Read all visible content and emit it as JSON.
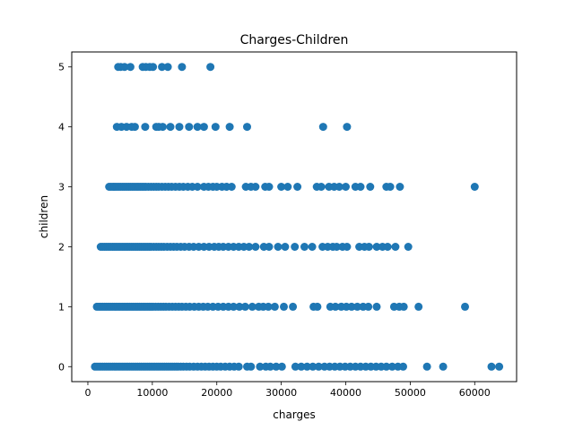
{
  "chart_data": {
    "type": "scatter",
    "title": "Charges-Children",
    "xlabel": "charges",
    "ylabel": "children",
    "xlim": [
      -2500,
      66500
    ],
    "ylim": [
      -0.25,
      5.25
    ],
    "x_ticks": [
      0,
      10000,
      20000,
      30000,
      40000,
      50000,
      60000
    ],
    "y_ticks": [
      0,
      1,
      2,
      3,
      4,
      5
    ],
    "marker_color": "#1f77b4",
    "grid": false,
    "series": [
      {
        "points": [
          [
            4700,
            5
          ],
          [
            5100,
            5
          ],
          [
            5700,
            5
          ],
          [
            6600,
            5
          ],
          [
            8500,
            5
          ],
          [
            9000,
            5
          ],
          [
            9600,
            5
          ],
          [
            10100,
            5
          ],
          [
            11500,
            5
          ],
          [
            12400,
            5
          ],
          [
            14600,
            5
          ],
          [
            19000,
            5
          ],
          [
            4500,
            4
          ],
          [
            5200,
            4
          ],
          [
            6000,
            4
          ],
          [
            6800,
            4
          ],
          [
            7300,
            4
          ],
          [
            8900,
            4
          ],
          [
            10600,
            4
          ],
          [
            11000,
            4
          ],
          [
            11600,
            4
          ],
          [
            12800,
            4
          ],
          [
            14200,
            4
          ],
          [
            15700,
            4
          ],
          [
            17000,
            4
          ],
          [
            18000,
            4
          ],
          [
            19800,
            4
          ],
          [
            22000,
            4
          ],
          [
            24700,
            4
          ],
          [
            36500,
            4
          ],
          [
            40200,
            4
          ],
          [
            3300,
            3
          ],
          [
            3600,
            3
          ],
          [
            3900,
            3
          ],
          [
            4200,
            3
          ],
          [
            4500,
            3
          ],
          [
            4800,
            3
          ],
          [
            5100,
            3
          ],
          [
            5400,
            3
          ],
          [
            5700,
            3
          ],
          [
            6000,
            3
          ],
          [
            6300,
            3
          ],
          [
            6600,
            3
          ],
          [
            6900,
            3
          ],
          [
            7200,
            3
          ],
          [
            7500,
            3
          ],
          [
            7800,
            3
          ],
          [
            8100,
            3
          ],
          [
            8400,
            3
          ],
          [
            8700,
            3
          ],
          [
            9000,
            3
          ],
          [
            9400,
            3
          ],
          [
            9800,
            3
          ],
          [
            10200,
            3
          ],
          [
            10600,
            3
          ],
          [
            11000,
            3
          ],
          [
            11500,
            3
          ],
          [
            12000,
            3
          ],
          [
            12500,
            3
          ],
          [
            13000,
            3
          ],
          [
            13600,
            3
          ],
          [
            14200,
            3
          ],
          [
            14800,
            3
          ],
          [
            15500,
            3
          ],
          [
            16200,
            3
          ],
          [
            17000,
            3
          ],
          [
            18000,
            3
          ],
          [
            18700,
            3
          ],
          [
            19400,
            3
          ],
          [
            20000,
            3
          ],
          [
            20800,
            3
          ],
          [
            21500,
            3
          ],
          [
            22300,
            3
          ],
          [
            24500,
            3
          ],
          [
            25300,
            3
          ],
          [
            26000,
            3
          ],
          [
            27500,
            3
          ],
          [
            28100,
            3
          ],
          [
            30000,
            3
          ],
          [
            31000,
            3
          ],
          [
            32500,
            3
          ],
          [
            35500,
            3
          ],
          [
            36200,
            3
          ],
          [
            37400,
            3
          ],
          [
            38200,
            3
          ],
          [
            39000,
            3
          ],
          [
            40000,
            3
          ],
          [
            41500,
            3
          ],
          [
            42300,
            3
          ],
          [
            43800,
            3
          ],
          [
            46300,
            3
          ],
          [
            46900,
            3
          ],
          [
            48400,
            3
          ],
          [
            60000,
            3
          ],
          [
            2000,
            2
          ],
          [
            2300,
            2
          ],
          [
            2600,
            2
          ],
          [
            2900,
            2
          ],
          [
            3200,
            2
          ],
          [
            3500,
            2
          ],
          [
            3800,
            2
          ],
          [
            4100,
            2
          ],
          [
            4400,
            2
          ],
          [
            4700,
            2
          ],
          [
            5000,
            2
          ],
          [
            5300,
            2
          ],
          [
            5600,
            2
          ],
          [
            5900,
            2
          ],
          [
            6200,
            2
          ],
          [
            6500,
            2
          ],
          [
            6800,
            2
          ],
          [
            7100,
            2
          ],
          [
            7400,
            2
          ],
          [
            7700,
            2
          ],
          [
            8000,
            2
          ],
          [
            8300,
            2
          ],
          [
            8600,
            2
          ],
          [
            8900,
            2
          ],
          [
            9200,
            2
          ],
          [
            9500,
            2
          ],
          [
            9800,
            2
          ],
          [
            10200,
            2
          ],
          [
            10600,
            2
          ],
          [
            11000,
            2
          ],
          [
            11400,
            2
          ],
          [
            11800,
            2
          ],
          [
            12300,
            2
          ],
          [
            12800,
            2
          ],
          [
            13300,
            2
          ],
          [
            13800,
            2
          ],
          [
            14400,
            2
          ],
          [
            15000,
            2
          ],
          [
            15700,
            2
          ],
          [
            16400,
            2
          ],
          [
            17200,
            2
          ],
          [
            18000,
            2
          ],
          [
            18800,
            2
          ],
          [
            19600,
            2
          ],
          [
            20300,
            2
          ],
          [
            21000,
            2
          ],
          [
            21800,
            2
          ],
          [
            22600,
            2
          ],
          [
            23400,
            2
          ],
          [
            24200,
            2
          ],
          [
            25000,
            2
          ],
          [
            26000,
            2
          ],
          [
            27300,
            2
          ],
          [
            28100,
            2
          ],
          [
            29500,
            2
          ],
          [
            30600,
            2
          ],
          [
            32100,
            2
          ],
          [
            33600,
            2
          ],
          [
            34800,
            2
          ],
          [
            36400,
            2
          ],
          [
            37200,
            2
          ],
          [
            38000,
            2
          ],
          [
            38600,
            2
          ],
          [
            39500,
            2
          ],
          [
            40200,
            2
          ],
          [
            42100,
            2
          ],
          [
            42900,
            2
          ],
          [
            43600,
            2
          ],
          [
            44800,
            2
          ],
          [
            45700,
            2
          ],
          [
            46500,
            2
          ],
          [
            47700,
            2
          ],
          [
            49700,
            2
          ],
          [
            1400,
            1
          ],
          [
            1700,
            1
          ],
          [
            2000,
            1
          ],
          [
            2300,
            1
          ],
          [
            2600,
            1
          ],
          [
            2900,
            1
          ],
          [
            3200,
            1
          ],
          [
            3500,
            1
          ],
          [
            3800,
            1
          ],
          [
            4100,
            1
          ],
          [
            4400,
            1
          ],
          [
            4700,
            1
          ],
          [
            5000,
            1
          ],
          [
            5300,
            1
          ],
          [
            5600,
            1
          ],
          [
            5900,
            1
          ],
          [
            6200,
            1
          ],
          [
            6500,
            1
          ],
          [
            6800,
            1
          ],
          [
            7100,
            1
          ],
          [
            7400,
            1
          ],
          [
            7700,
            1
          ],
          [
            8000,
            1
          ],
          [
            8300,
            1
          ],
          [
            8600,
            1
          ],
          [
            8900,
            1
          ],
          [
            9200,
            1
          ],
          [
            9500,
            1
          ],
          [
            9800,
            1
          ],
          [
            10100,
            1
          ],
          [
            10500,
            1
          ],
          [
            10900,
            1
          ],
          [
            11300,
            1
          ],
          [
            11700,
            1
          ],
          [
            12100,
            1
          ],
          [
            12600,
            1
          ],
          [
            13100,
            1
          ],
          [
            13600,
            1
          ],
          [
            14100,
            1
          ],
          [
            14600,
            1
          ],
          [
            15200,
            1
          ],
          [
            15800,
            1
          ],
          [
            16500,
            1
          ],
          [
            17200,
            1
          ],
          [
            17900,
            1
          ],
          [
            18600,
            1
          ],
          [
            19400,
            1
          ],
          [
            20200,
            1
          ],
          [
            21000,
            1
          ],
          [
            21800,
            1
          ],
          [
            22600,
            1
          ],
          [
            23500,
            1
          ],
          [
            24400,
            1
          ],
          [
            25500,
            1
          ],
          [
            26500,
            1
          ],
          [
            27200,
            1
          ],
          [
            28000,
            1
          ],
          [
            29000,
            1
          ],
          [
            30400,
            1
          ],
          [
            31800,
            1
          ],
          [
            35000,
            1
          ],
          [
            35600,
            1
          ],
          [
            37600,
            1
          ],
          [
            38400,
            1
          ],
          [
            39300,
            1
          ],
          [
            40100,
            1
          ],
          [
            40900,
            1
          ],
          [
            41800,
            1
          ],
          [
            42700,
            1
          ],
          [
            43500,
            1
          ],
          [
            44800,
            1
          ],
          [
            47500,
            1
          ],
          [
            48300,
            1
          ],
          [
            49000,
            1
          ],
          [
            51300,
            1
          ],
          [
            58500,
            1
          ],
          [
            1100,
            0
          ],
          [
            1400,
            0
          ],
          [
            1700,
            0
          ],
          [
            2000,
            0
          ],
          [
            2300,
            0
          ],
          [
            2600,
            0
          ],
          [
            2900,
            0
          ],
          [
            3200,
            0
          ],
          [
            3500,
            0
          ],
          [
            3800,
            0
          ],
          [
            4100,
            0
          ],
          [
            4400,
            0
          ],
          [
            4700,
            0
          ],
          [
            5000,
            0
          ],
          [
            5300,
            0
          ],
          [
            5600,
            0
          ],
          [
            5900,
            0
          ],
          [
            6200,
            0
          ],
          [
            6500,
            0
          ],
          [
            6800,
            0
          ],
          [
            7100,
            0
          ],
          [
            7400,
            0
          ],
          [
            7700,
            0
          ],
          [
            8000,
            0
          ],
          [
            8300,
            0
          ],
          [
            8600,
            0
          ],
          [
            8900,
            0
          ],
          [
            9200,
            0
          ],
          [
            9500,
            0
          ],
          [
            9800,
            0
          ],
          [
            10100,
            0
          ],
          [
            10400,
            0
          ],
          [
            10700,
            0
          ],
          [
            11000,
            0
          ],
          [
            11300,
            0
          ],
          [
            11600,
            0
          ],
          [
            11900,
            0
          ],
          [
            12200,
            0
          ],
          [
            12500,
            0
          ],
          [
            12800,
            0
          ],
          [
            13100,
            0
          ],
          [
            13400,
            0
          ],
          [
            13700,
            0
          ],
          [
            14000,
            0
          ],
          [
            14400,
            0
          ],
          [
            14800,
            0
          ],
          [
            15300,
            0
          ],
          [
            15800,
            0
          ],
          [
            16400,
            0
          ],
          [
            17000,
            0
          ],
          [
            17600,
            0
          ],
          [
            18200,
            0
          ],
          [
            18800,
            0
          ],
          [
            19400,
            0
          ],
          [
            20000,
            0
          ],
          [
            20600,
            0
          ],
          [
            21300,
            0
          ],
          [
            22000,
            0
          ],
          [
            22700,
            0
          ],
          [
            23400,
            0
          ],
          [
            24700,
            0
          ],
          [
            25300,
            0
          ],
          [
            26700,
            0
          ],
          [
            27600,
            0
          ],
          [
            28300,
            0
          ],
          [
            29200,
            0
          ],
          [
            30100,
            0
          ],
          [
            32200,
            0
          ],
          [
            33100,
            0
          ],
          [
            34000,
            0
          ],
          [
            34900,
            0
          ],
          [
            35800,
            0
          ],
          [
            36700,
            0
          ],
          [
            37500,
            0
          ],
          [
            38300,
            0
          ],
          [
            39100,
            0
          ],
          [
            39900,
            0
          ],
          [
            40700,
            0
          ],
          [
            41500,
            0
          ],
          [
            42300,
            0
          ],
          [
            43100,
            0
          ],
          [
            43900,
            0
          ],
          [
            44700,
            0
          ],
          [
            45500,
            0
          ],
          [
            46300,
            0
          ],
          [
            47200,
            0
          ],
          [
            48100,
            0
          ],
          [
            48900,
            0
          ],
          [
            52600,
            0
          ],
          [
            55100,
            0
          ],
          [
            62600,
            0
          ],
          [
            63800,
            0
          ]
        ]
      }
    ]
  }
}
